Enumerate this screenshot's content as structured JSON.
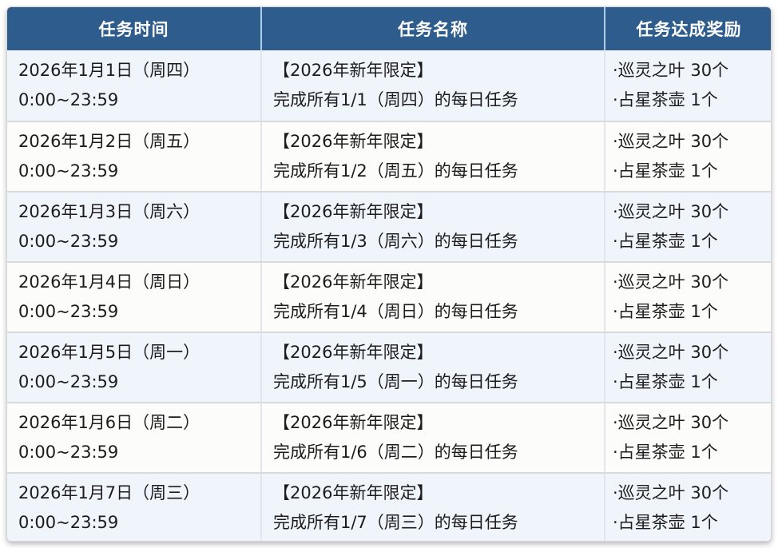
{
  "page": {
    "background_color": "#ffffff"
  },
  "table": {
    "title_semantic": "2026 New Year limited daily task schedule",
    "colors": {
      "header_bg": "#2e5c8c",
      "header_text": "#ffffff",
      "header_divider": "#aecde6",
      "row_odd_bg": "#f0f5fb",
      "row_even_bg": "#fcfcfa",
      "row_divider": "#d8dadc",
      "body_text": "#1c1c1e"
    },
    "headers": [
      "任务时间",
      "任务名称",
      "任务达成奖励"
    ],
    "rows": [
      {
        "time_date": "2026年1月1日（周四）",
        "time_range": "0:00~23:59",
        "task_title": "【2026年新年限定】",
        "task_desc": "完成所有1/1（周四）的每日任务",
        "reward_1": "·巡灵之叶 30个",
        "reward_2": "·占星茶壶 1个"
      },
      {
        "time_date": "2026年1月2日（周五）",
        "time_range": "0:00~23:59",
        "task_title": "【2026年新年限定】",
        "task_desc": "完成所有1/2（周五）的每日任务",
        "reward_1": "·巡灵之叶 30个",
        "reward_2": "·占星茶壶 1个"
      },
      {
        "time_date": "2026年1月3日（周六）",
        "time_range": "0:00~23:59",
        "task_title": "【2026年新年限定】",
        "task_desc": "完成所有1/3（周六）的每日任务",
        "reward_1": "·巡灵之叶 30个",
        "reward_2": "·占星茶壶 1个"
      },
      {
        "time_date": "2026年1月4日（周日）",
        "time_range": "0:00~23:59",
        "task_title": "【2026年新年限定】",
        "task_desc": "完成所有1/4（周日）的每日任务",
        "reward_1": "·巡灵之叶 30个",
        "reward_2": "·占星茶壶 1个"
      },
      {
        "time_date": "2026年1月5日（周一）",
        "time_range": "0:00~23:59",
        "task_title": "【2026年新年限定】",
        "task_desc": "完成所有1/5（周一）的每日任务",
        "reward_1": "·巡灵之叶 30个",
        "reward_2": "·占星茶壶 1个"
      },
      {
        "time_date": "2026年1月6日（周二）",
        "time_range": "0:00~23:59",
        "task_title": "【2026年新年限定】",
        "task_desc": "完成所有1/6（周二）的每日任务",
        "reward_1": "·巡灵之叶 30个",
        "reward_2": "·占星茶壶 1个"
      },
      {
        "time_date": "2026年1月7日（周三）",
        "time_range": "0:00~23:59",
        "task_title": "【2026年新年限定】",
        "task_desc": "完成所有1/7（周三）的每日任务",
        "reward_1": "·巡灵之叶 30个",
        "reward_2": "·占星茶壶 1个"
      }
    ]
  }
}
